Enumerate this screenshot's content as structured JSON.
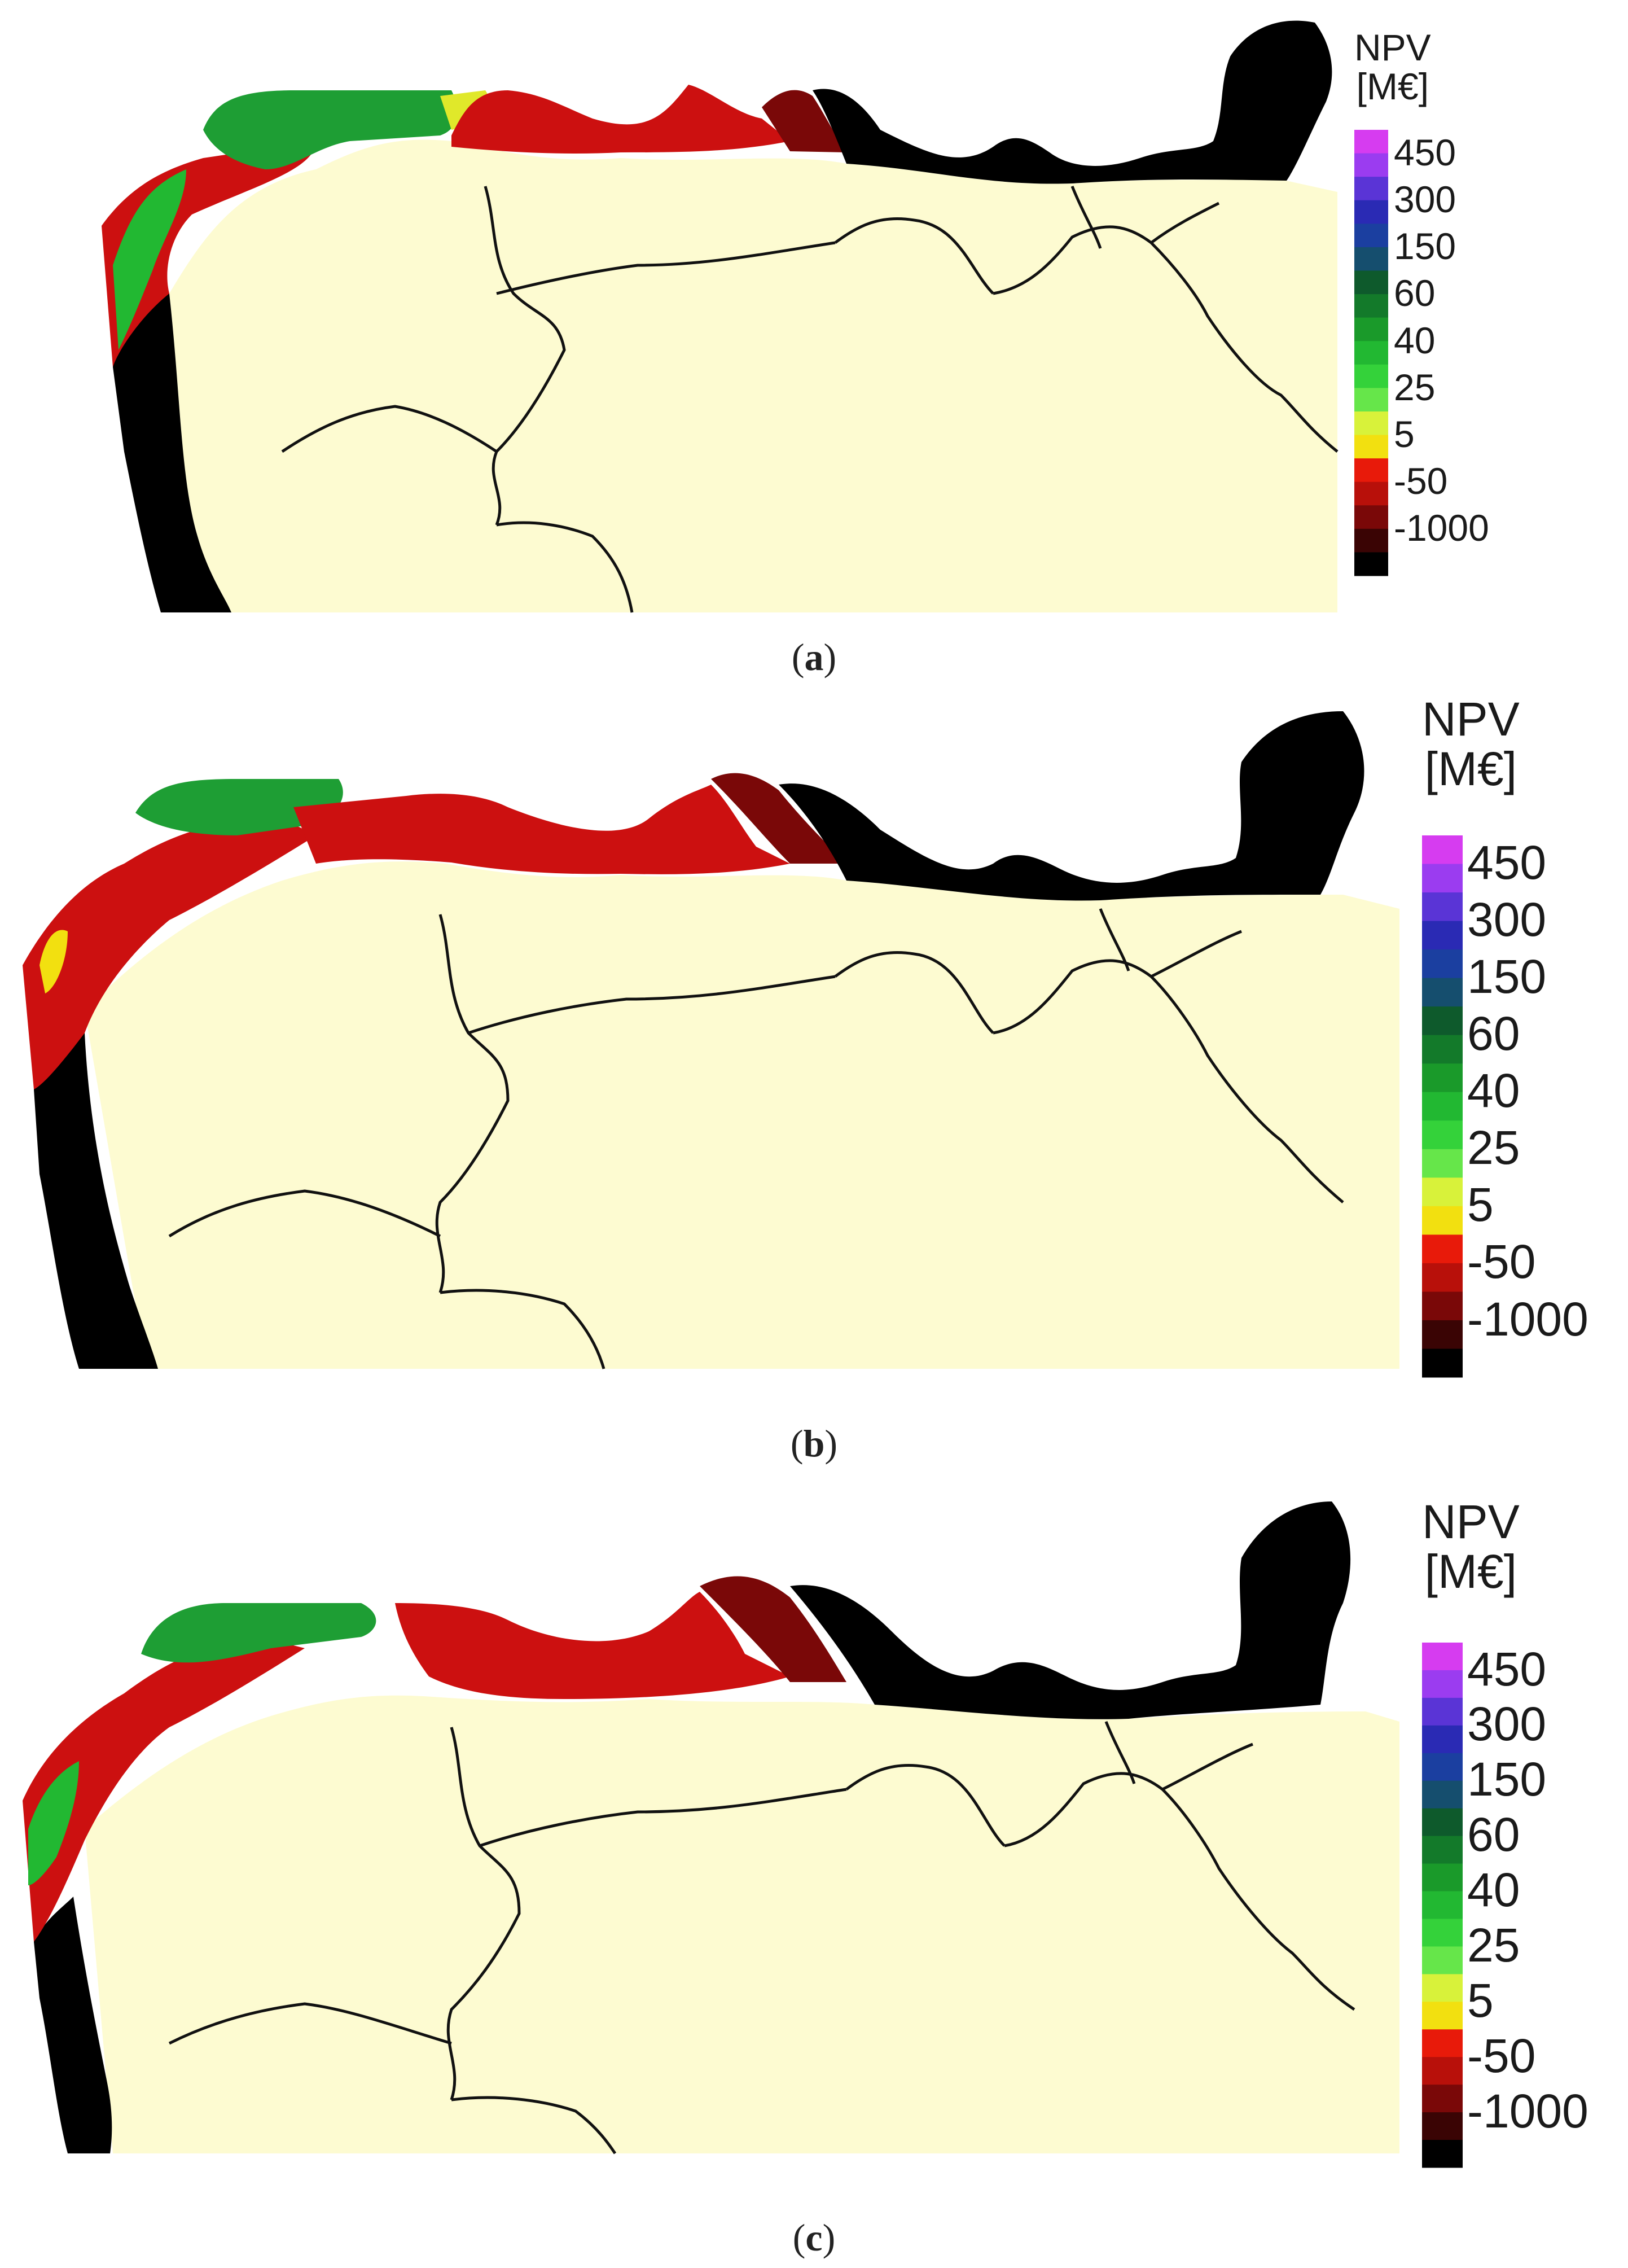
{
  "legend": {
    "title_line1": "NPV",
    "title_line2": "[M€]",
    "ticks": [
      "450",
      "300",
      "150",
      "60",
      "40",
      "25",
      "5",
      "-50",
      "-1000"
    ],
    "colors": [
      "#d63cf0",
      "#9b3cf0",
      "#5a34d6",
      "#2a2ab4",
      "#1b3fa0",
      "#154e6e",
      "#0e5a2c",
      "#137a2a",
      "#1a9a2a",
      "#22b832",
      "#34d23a",
      "#66e64a",
      "#d8f23a",
      "#f2e010",
      "#e81a0a",
      "#b8100a",
      "#7a0808",
      "#3a0404",
      "#000000"
    ]
  },
  "colors": {
    "land": "#fdfbd1",
    "border": "#111111",
    "sea": "#ffffff"
  },
  "panels": [
    {
      "label": "a"
    },
    {
      "label": "b"
    },
    {
      "label": "c"
    }
  ]
}
